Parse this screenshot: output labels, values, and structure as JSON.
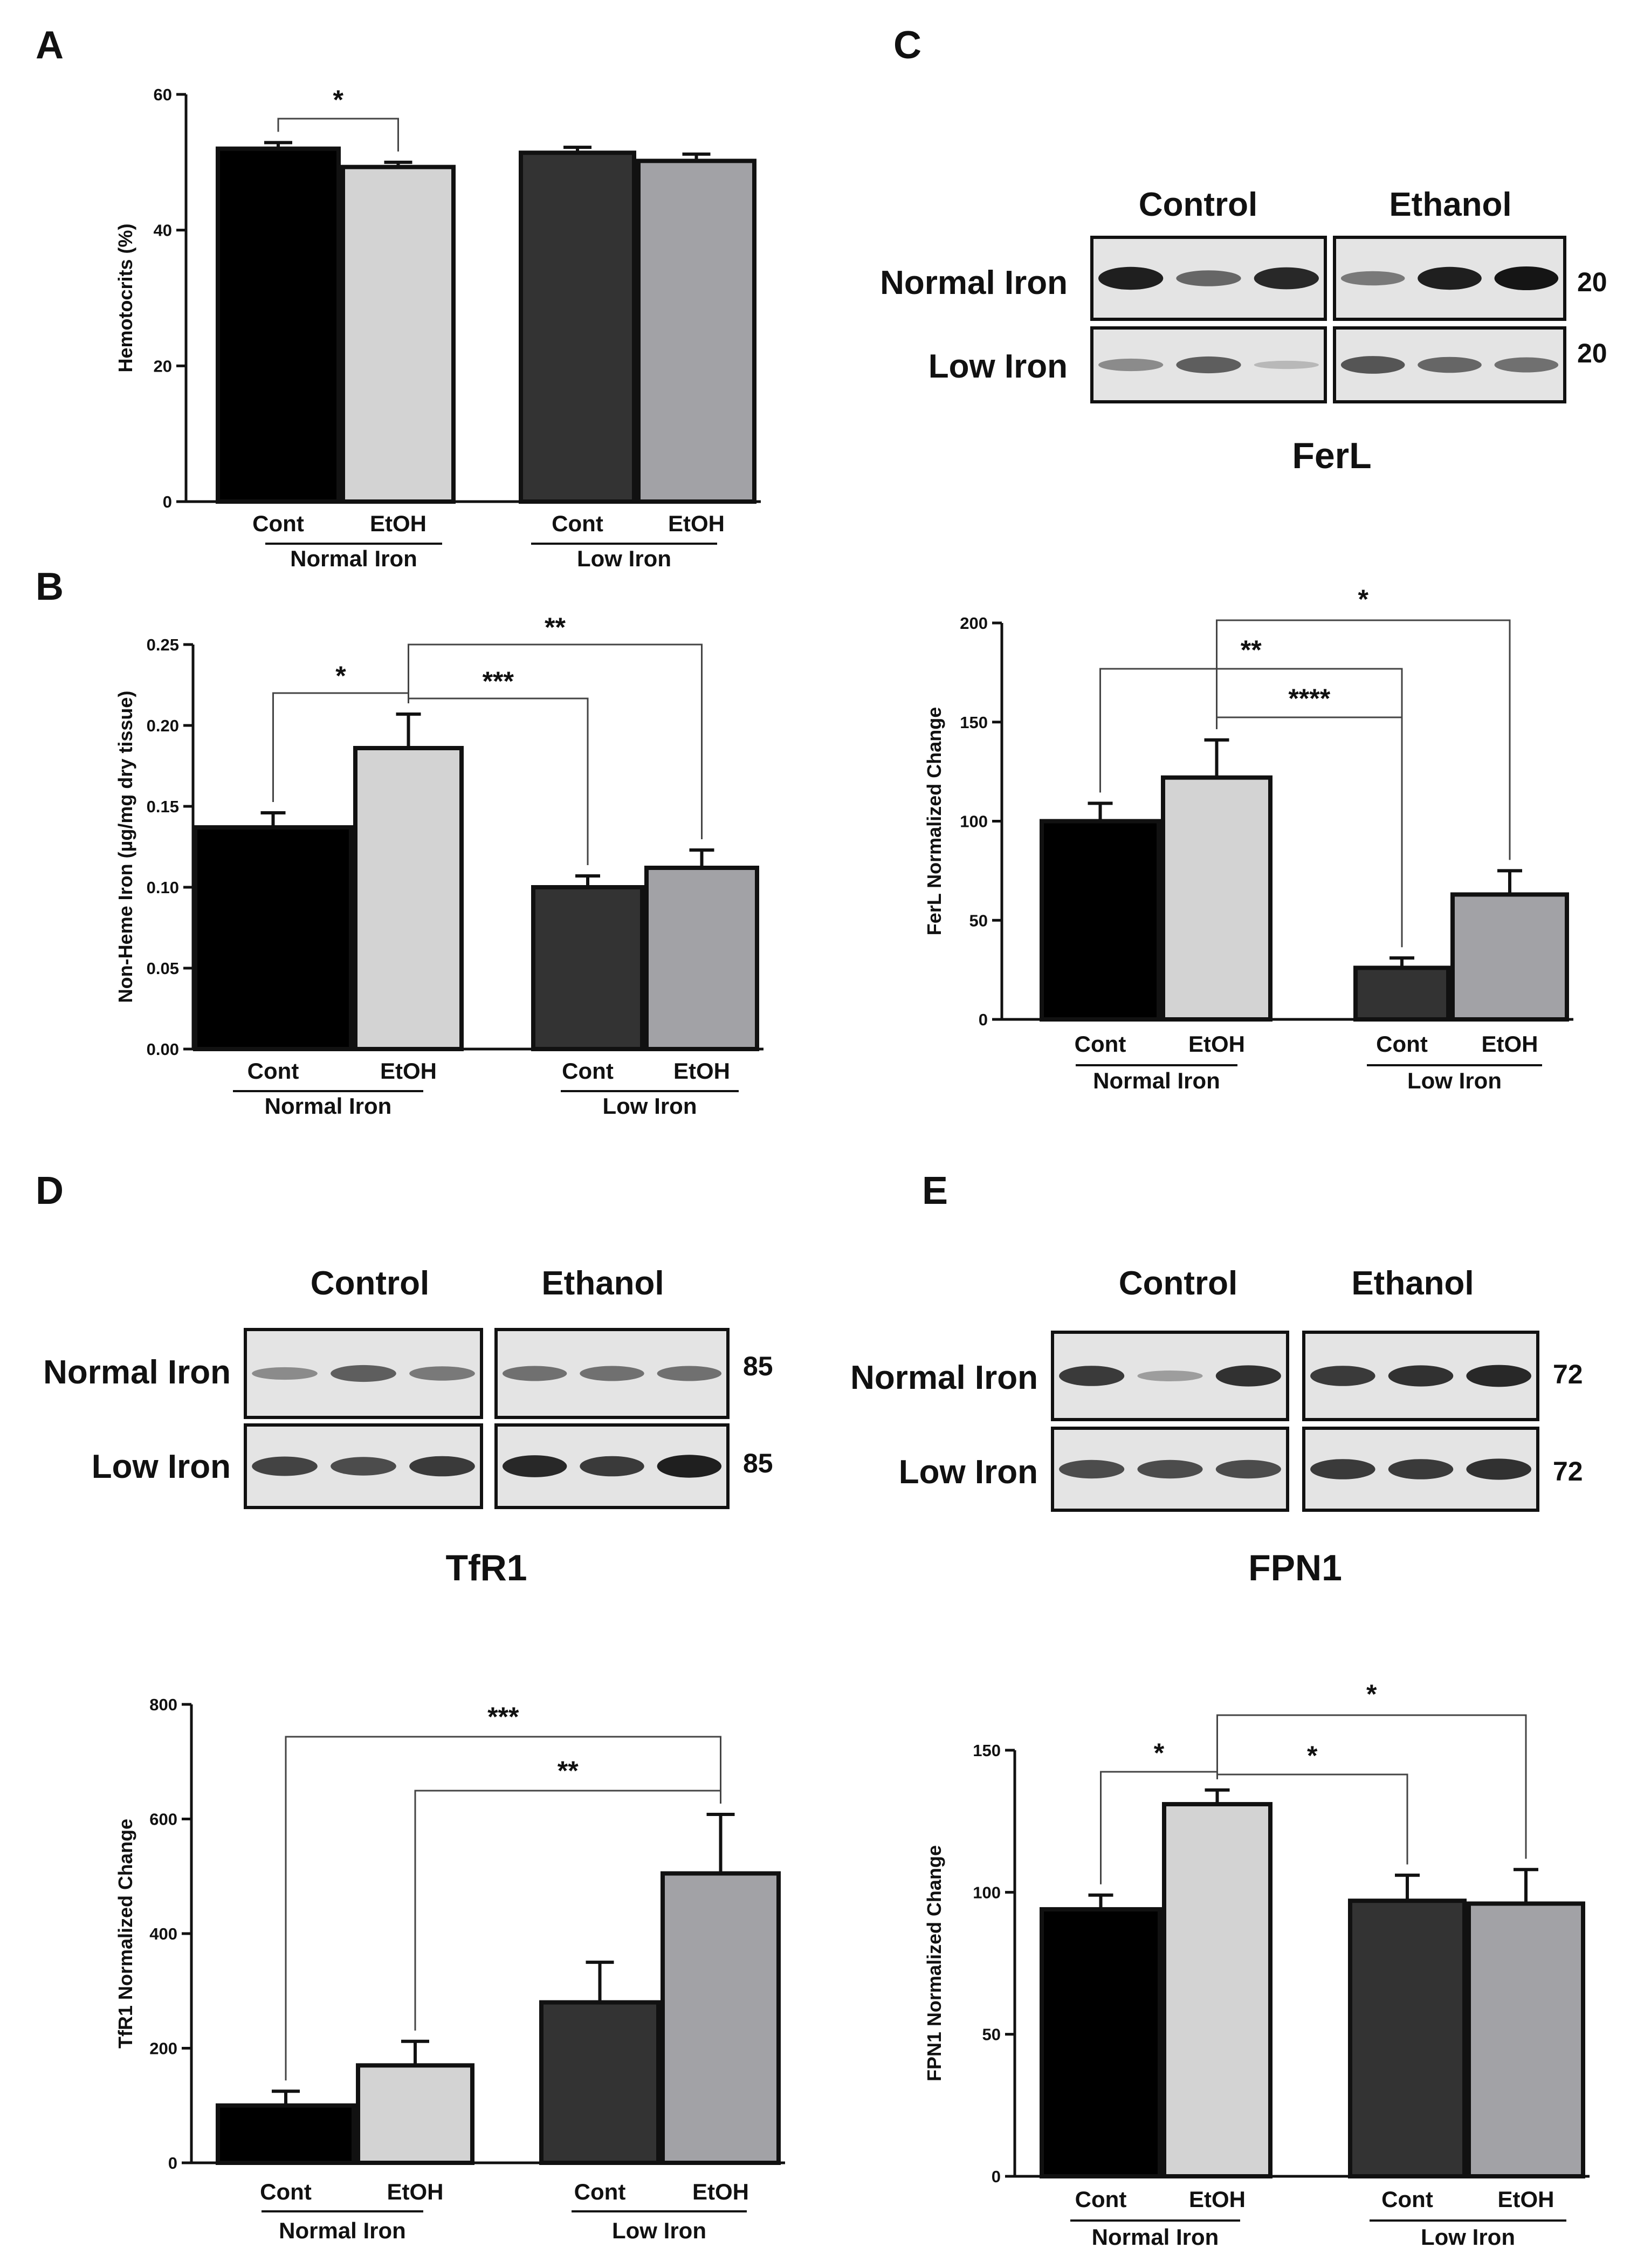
{
  "figure": {
    "panel_labels": [
      "A",
      "B",
      "C",
      "D",
      "E"
    ]
  },
  "colors": {
    "cont_normal": "#000000",
    "etoh_normal": "#d3d3d3",
    "cont_low": "#333333",
    "etoh_low": "#a2a2a6",
    "ink": "#111111"
  },
  "blots": [
    {
      "id": "C",
      "headers": [
        "Control",
        "Ethanol"
      ],
      "rows": [
        "Normal Iron",
        "Low Iron"
      ],
      "mw": [
        "20",
        "20"
      ],
      "title": "FerL",
      "bands": [
        [
          [
            0.95,
            0.55,
            0.9
          ],
          [
            0.45,
            0.95,
            1.0
          ]
        ],
        [
          [
            0.35,
            0.6,
            0.1
          ],
          [
            0.65,
            0.55,
            0.5
          ]
        ]
      ]
    },
    {
      "id": "D",
      "headers": [
        "Control",
        "Ethanol"
      ],
      "rows": [
        "Normal Iron",
        "Low Iron"
      ],
      "mw": [
        "85",
        "85"
      ],
      "title": "TfR1",
      "bands": [
        [
          [
            0.35,
            0.6,
            0.45
          ],
          [
            0.5,
            0.5,
            0.5
          ]
        ],
        [
          [
            0.75,
            0.7,
            0.8
          ],
          [
            0.9,
            0.8,
            0.95
          ]
        ]
      ]
    },
    {
      "id": "E",
      "headers": [
        "Control",
        "Ethanol"
      ],
      "rows": [
        "Normal Iron",
        "Low Iron"
      ],
      "mw": [
        "72",
        "72"
      ],
      "title": "FPN1",
      "bands": [
        [
          [
            0.8,
            0.25,
            0.85
          ],
          [
            0.8,
            0.85,
            0.9
          ]
        ],
        [
          [
            0.7,
            0.7,
            0.7
          ],
          [
            0.8,
            0.8,
            0.85
          ]
        ]
      ]
    }
  ],
  "chart_data": [
    {
      "id": "A",
      "type": "bar",
      "title": "",
      "ylabel": "Hemotocrits  (%)",
      "categories": [
        "Cont",
        "EtOH",
        "Cont",
        "EtOH"
      ],
      "groups": [
        "Normal Iron",
        "Low Iron"
      ],
      "values": [
        52,
        49.3,
        51.4,
        50.2
      ],
      "errors": [
        0.9,
        0.7,
        0.8,
        1.0
      ],
      "ylim": [
        0,
        60
      ],
      "yticks": [
        "0",
        "20",
        "40",
        "60"
      ],
      "significance": [
        {
          "from": 0,
          "to": 1,
          "label": "*"
        }
      ]
    },
    {
      "id": "B",
      "type": "bar",
      "title": "",
      "ylabel": "Non-Heme Iron  (µg/mg dry tissue)",
      "categories": [
        "Cont",
        "EtOH",
        "Cont",
        "EtOH"
      ],
      "groups": [
        "Normal Iron",
        "Low Iron"
      ],
      "values": [
        0.137,
        0.186,
        0.1,
        0.112
      ],
      "errors": [
        0.009,
        0.021,
        0.007,
        0.011
      ],
      "ylim": [
        0,
        0.25
      ],
      "yticks": [
        "0.00",
        "0.05",
        "0.10",
        "0.15",
        "0.20",
        "0.25"
      ],
      "significance": [
        {
          "from": 0,
          "to": 1,
          "label": "*"
        },
        {
          "from": 1,
          "to": 2,
          "label": "***"
        },
        {
          "from": 1,
          "to": 3,
          "label": "**"
        }
      ]
    },
    {
      "id": "C-quant",
      "type": "bar",
      "title": "",
      "ylabel": "FerL Normalized Change",
      "categories": [
        "Cont",
        "EtOH",
        "Cont",
        "EtOH"
      ],
      "groups": [
        "Normal Iron",
        "Low Iron"
      ],
      "values": [
        100,
        122,
        26,
        63
      ],
      "errors": [
        9,
        19,
        5,
        12
      ],
      "ylim": [
        0,
        200
      ],
      "yticks": [
        "0",
        "50",
        "100",
        "150",
        "200"
      ],
      "significance": [
        {
          "from": 0,
          "to": 2,
          "label": "**"
        },
        {
          "from": 1,
          "to": 2,
          "label": "****"
        },
        {
          "from": 1,
          "to": 3,
          "label": "*"
        }
      ]
    },
    {
      "id": "D-quant",
      "type": "bar",
      "title": "",
      "ylabel": "TfR1 Normalized Change",
      "categories": [
        "Cont",
        "EtOH",
        "Cont",
        "EtOH"
      ],
      "groups": [
        "Normal Iron",
        "Low Iron"
      ],
      "values": [
        100,
        170,
        280,
        505
      ],
      "errors": [
        25,
        42,
        70,
        103
      ],
      "ylim": [
        0,
        800
      ],
      "yticks": [
        "0",
        "200",
        "400",
        "600",
        "800"
      ],
      "significance": [
        {
          "from": 0,
          "to": 3,
          "label": "***"
        },
        {
          "from": 1,
          "to": 3,
          "label": "**"
        }
      ]
    },
    {
      "id": "E-quant",
      "type": "bar",
      "title": "",
      "ylabel": "FPN1 Normalized Change",
      "categories": [
        "Cont",
        "EtOH",
        "Cont",
        "EtOH"
      ],
      "groups": [
        "Normal Iron",
        "Low Iron"
      ],
      "values": [
        94,
        131,
        97,
        96
      ],
      "errors": [
        5,
        5,
        9,
        12
      ],
      "ylim": [
        0,
        150
      ],
      "yticks": [
        "0",
        "50",
        "100",
        "150"
      ],
      "significance": [
        {
          "from": 0,
          "to": 1,
          "label": "*"
        },
        {
          "from": 1,
          "to": 2,
          "label": "*"
        },
        {
          "from": 1,
          "to": 3,
          "label": "*"
        }
      ]
    }
  ]
}
